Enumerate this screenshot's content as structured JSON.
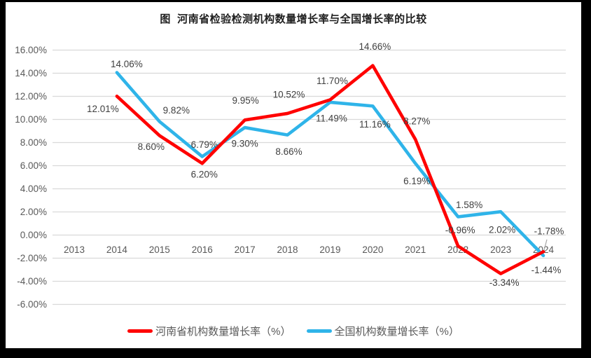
{
  "title": "图  河南省检验检测机构数量增长率与全国增长率的比较",
  "colors": {
    "henan": "#ff0000",
    "national": "#2fb4e9",
    "gridline": "#d9d9d9",
    "axis_text": "#595959",
    "label_text": "#3f3f3f",
    "leader": "#a6a6a6",
    "frame": "#000000",
    "background": "#ffffff"
  },
  "chart_data": {
    "type": "line",
    "categories": [
      "2013",
      "2014",
      "2015",
      "2016",
      "2017",
      "2018",
      "2019",
      "2020",
      "2021",
      "2022",
      "2023",
      "2024"
    ],
    "ylim": [
      -6,
      16
    ],
    "ytick_step": 2,
    "ytick_suffix": "%",
    "grid": true,
    "legend_position": "bottom",
    "series": [
      {
        "name": "全国机构数量增长率（%）",
        "color": "#2fb4e9",
        "start_index": 1,
        "values": [
          14.06,
          9.82,
          6.79,
          9.3,
          8.66,
          11.49,
          11.16,
          6.19,
          1.58,
          2.02,
          -1.78
        ],
        "labels": [
          "14.06%",
          "9.82%",
          "6.79%",
          "9.30%",
          "8.66%",
          "11.49%",
          "11.16%",
          "6.19%",
          "1.58%",
          "2.02%",
          "-1.78%"
        ],
        "label_offsets": [
          [
            14,
            -12
          ],
          [
            24,
            -16
          ],
          [
            3,
            -17
          ],
          [
            0,
            23
          ],
          [
            2,
            24
          ],
          [
            2,
            23
          ],
          [
            3,
            26
          ],
          [
            2,
            25
          ],
          [
            16,
            -17
          ],
          [
            2,
            26
          ],
          [
            8,
            -35
          ]
        ],
        "leader": {
          "point": 10,
          "from": [
            5,
            -23
          ],
          "to": [
            0,
            -4
          ]
        }
      },
      {
        "name": "河南省机构数量增长率（%）",
        "color": "#ff0000",
        "start_index": 1,
        "values": [
          12.01,
          8.6,
          6.2,
          9.95,
          10.52,
          11.7,
          14.66,
          8.27,
          -0.96,
          -3.34,
          -1.44
        ],
        "labels": [
          "12.01%",
          "8.60%",
          "6.20%",
          "9.95%",
          "10.52%",
          "11.70%",
          "14.66%",
          "8.27%",
          "-0.96%",
          "-3.34%",
          "-1.44%"
        ],
        "label_offsets": [
          [
            -20,
            18
          ],
          [
            -12,
            16
          ],
          [
            3,
            16
          ],
          [
            1,
            -28
          ],
          [
            2,
            -27
          ],
          [
            3,
            -27
          ],
          [
            3,
            -27
          ],
          [
            2,
            -26
          ],
          [
            3,
            -23
          ],
          [
            5,
            13
          ],
          [
            4,
            26
          ]
        ]
      }
    ]
  },
  "legend": {
    "items": [
      {
        "label": "河南省机构数量增长率（%）",
        "color_key": "henan"
      },
      {
        "label": "全国机构数量增长率（%）",
        "color_key": "national"
      }
    ]
  }
}
